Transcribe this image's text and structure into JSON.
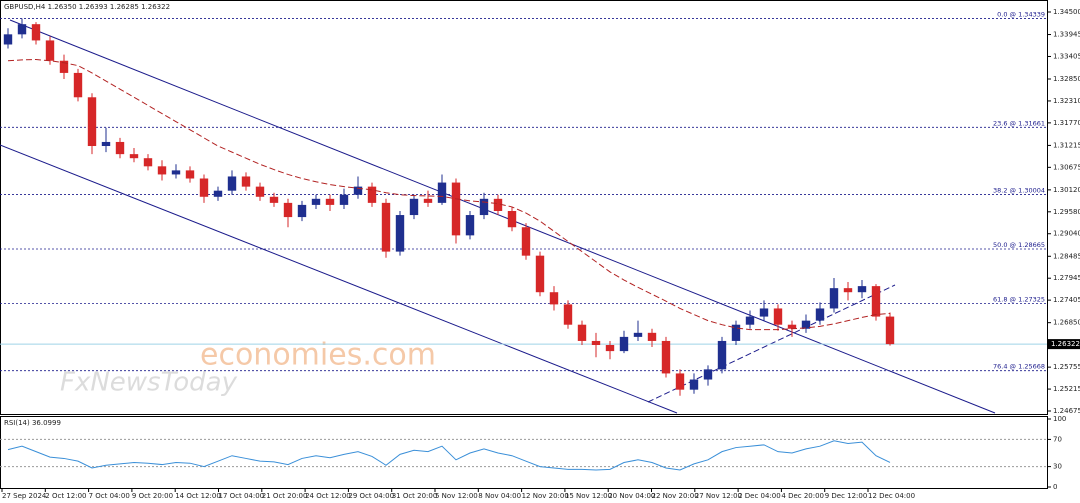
{
  "chart_data": {
    "type": "candlestick",
    "title": "GBPUSD,H4  1.26350 1.26393 1.26285 1.26322",
    "ylim": [
      1.24675,
      1.345
    ],
    "yticks": [
      {
        "value": 1.345,
        "label": "1.34500"
      },
      1.33945,
      1.33405,
      {
        "value": 1.3285,
        "label": "1.32850"
      },
      {
        "value": 1.3231,
        "label": "1.32310"
      },
      {
        "value": 1.3177,
        "label": "1.31770"
      },
      1.31215,
      1.30675,
      {
        "value": 1.3012,
        "label": "1.30120"
      },
      {
        "value": 1.2958,
        "label": "1.29580"
      },
      {
        "value": 1.2904,
        "label": "1.29040"
      },
      1.28485,
      1.27945,
      1.27405,
      {
        "value": 1.2685,
        "label": "1.26850"
      },
      1.25755,
      1.25215,
      1.24675
    ],
    "last_price": 1.26322,
    "up_color": "#1f2f8f",
    "down_color": "#d62728",
    "ma_color": "#b22222",
    "rsi_color": "#3a8fd8",
    "fib_levels": [
      {
        "value": 1.34339,
        "label": "0.0 @ 1.34339"
      },
      {
        "value": 1.31661,
        "label": "23.6 @ 1.31661"
      },
      {
        "value": 1.30004,
        "label": "38.2 @ 1.30004"
      },
      {
        "value": 1.28665,
        "label": "50.0 @ 1.28665"
      },
      {
        "value": 1.27325,
        "label": "61.8 @ 1.27325"
      },
      {
        "value": 1.25668,
        "label": "76.4 @ 1.25668"
      }
    ],
    "x_labels": [
      "27 Sep 2024",
      "2 Oct 12:00",
      "7 Oct 04:00",
      "9 Oct 20:00",
      "14 Oct 12:00",
      "17 Oct 04:00",
      "21 Oct 20:00",
      "24 Oct 12:00",
      "29 Oct 04:00",
      "31 Oct 20:00",
      "5 Nov 12:00",
      "8 Nov 04:00",
      "12 Nov 20:00",
      "15 Nov 12:00",
      "20 Nov 04:00",
      "22 Nov 20:00",
      "27 Nov 12:00",
      "2 Dec 04:00",
      "4 Dec 20:00",
      "9 Dec 12:00",
      "12 Dec 04:00"
    ],
    "candles": [
      [
        1.337,
        1.341,
        1.336,
        1.3395
      ],
      [
        1.3395,
        1.3434,
        1.3385,
        1.342
      ],
      [
        1.342,
        1.3425,
        1.337,
        1.338
      ],
      [
        1.338,
        1.339,
        1.332,
        1.333
      ],
      [
        1.333,
        1.3345,
        1.3285,
        1.33
      ],
      [
        1.33,
        1.331,
        1.323,
        1.324
      ],
      [
        1.324,
        1.325,
        1.31,
        1.312
      ],
      [
        1.312,
        1.3165,
        1.3105,
        1.313
      ],
      [
        1.313,
        1.314,
        1.309,
        1.31
      ],
      [
        1.31,
        1.3115,
        1.308,
        1.309
      ],
      [
        1.309,
        1.31,
        1.306,
        1.307
      ],
      [
        1.307,
        1.3085,
        1.3035,
        1.305
      ],
      [
        1.305,
        1.3075,
        1.304,
        1.306
      ],
      [
        1.306,
        1.307,
        1.303,
        1.304
      ],
      [
        1.304,
        1.305,
        1.298,
        1.2995
      ],
      [
        1.2995,
        1.302,
        1.2985,
        1.301
      ],
      [
        1.301,
        1.306,
        1.3,
        1.3045
      ],
      [
        1.3045,
        1.3055,
        1.301,
        1.302
      ],
      [
        1.302,
        1.303,
        1.2985,
        1.2995
      ],
      [
        1.2995,
        1.3005,
        1.297,
        1.298
      ],
      [
        1.298,
        1.299,
        1.292,
        1.2945
      ],
      [
        1.2945,
        1.2985,
        1.2935,
        1.2975
      ],
      [
        1.2975,
        1.3,
        1.2965,
        1.299
      ],
      [
        1.299,
        1.3,
        1.296,
        1.2975
      ],
      [
        1.2975,
        1.3015,
        1.2965,
        1.3
      ],
      [
        1.3,
        1.3045,
        1.299,
        1.302
      ],
      [
        1.302,
        1.303,
        1.297,
        1.298
      ],
      [
        1.298,
        1.299,
        1.2845,
        1.286
      ],
      [
        1.286,
        1.296,
        1.285,
        1.295
      ],
      [
        1.295,
        1.3,
        1.294,
        1.299
      ],
      [
        1.299,
        1.301,
        1.297,
        1.298
      ],
      [
        1.298,
        1.305,
        1.2975,
        1.303
      ],
      [
        1.303,
        1.304,
        1.288,
        1.29
      ],
      [
        1.29,
        1.296,
        1.289,
        1.295
      ],
      [
        1.295,
        1.3005,
        1.294,
        1.299
      ],
      [
        1.299,
        1.3,
        1.295,
        1.296
      ],
      [
        1.296,
        1.297,
        1.291,
        1.292
      ],
      [
        1.292,
        1.293,
        1.284,
        1.285
      ],
      [
        1.285,
        1.286,
        1.275,
        1.276
      ],
      [
        1.276,
        1.2775,
        1.2715,
        1.273
      ],
      [
        1.273,
        1.274,
        1.267,
        1.268
      ],
      [
        1.268,
        1.269,
        1.263,
        1.264
      ],
      [
        1.264,
        1.266,
        1.26,
        1.263
      ],
      [
        1.263,
        1.264,
        1.2595,
        1.2615
      ],
      [
        1.2615,
        1.2665,
        1.261,
        1.265
      ],
      [
        1.265,
        1.269,
        1.264,
        1.266
      ],
      [
        1.266,
        1.267,
        1.2625,
        1.264
      ],
      [
        1.264,
        1.265,
        1.255,
        1.256
      ],
      [
        1.256,
        1.257,
        1.2505,
        1.252
      ],
      [
        1.252,
        1.256,
        1.251,
        1.2545
      ],
      [
        1.2545,
        1.258,
        1.253,
        1.257
      ],
      [
        1.257,
        1.265,
        1.256,
        1.264
      ],
      [
        1.264,
        1.269,
        1.263,
        1.268
      ],
      [
        1.268,
        1.2715,
        1.267,
        1.27
      ],
      [
        1.27,
        1.274,
        1.269,
        1.272
      ],
      [
        1.272,
        1.273,
        1.2665,
        1.268
      ],
      [
        1.268,
        1.269,
        1.265,
        1.267
      ],
      [
        1.267,
        1.2705,
        1.266,
        1.269
      ],
      [
        1.269,
        1.2735,
        1.268,
        1.272
      ],
      [
        1.272,
        1.2795,
        1.271,
        1.277
      ],
      [
        1.277,
        1.2785,
        1.274,
        1.276
      ],
      [
        1.276,
        1.279,
        1.2745,
        1.2775
      ],
      [
        1.2775,
        1.278,
        1.269,
        1.27
      ],
      [
        1.27,
        1.271,
        1.26285,
        1.26322
      ]
    ],
    "ma": [
      1.333,
      1.3332,
      1.3333,
      1.333,
      1.3325,
      1.3318,
      1.33,
      1.328,
      1.326,
      1.324,
      1.322,
      1.32,
      1.318,
      1.316,
      1.314,
      1.312,
      1.3105,
      1.309,
      1.3075,
      1.3062,
      1.305,
      1.304,
      1.3032,
      1.3025,
      1.302,
      1.3016,
      1.3012,
      1.3005,
      1.3,
      1.2998,
      1.2997,
      1.2996,
      1.299,
      1.2985,
      1.2982,
      1.2978,
      1.297,
      1.2955,
      1.2935,
      1.291,
      1.2885,
      1.286,
      1.2835,
      1.281,
      1.279,
      1.2772,
      1.2755,
      1.2738,
      1.272,
      1.2705,
      1.269,
      1.268,
      1.2672,
      1.2668,
      1.2668,
      1.2668,
      1.267,
      1.2672,
      1.2676,
      1.2682,
      1.269,
      1.2698,
      1.2705,
      1.2708
    ],
    "rsi_label": "RSI(14) 36.0999",
    "rsi_ylim": [
      0,
      100
    ],
    "rsi_yticks": [
      100,
      70,
      30,
      0
    ],
    "rsi": [
      55,
      60,
      52,
      44,
      42,
      38,
      28,
      32,
      34,
      36,
      35,
      33,
      36,
      35,
      30,
      38,
      46,
      42,
      38,
      37,
      33,
      42,
      46,
      43,
      48,
      52,
      45,
      32,
      48,
      54,
      52,
      60,
      40,
      50,
      56,
      50,
      46,
      38,
      30,
      28,
      26,
      26,
      25,
      26,
      36,
      40,
      36,
      28,
      25,
      34,
      40,
      52,
      58,
      60,
      62,
      52,
      50,
      56,
      60,
      68,
      64,
      66,
      46,
      36.0999
    ],
    "watermark": [
      "economies.com",
      "FxNewsToday"
    ]
  }
}
